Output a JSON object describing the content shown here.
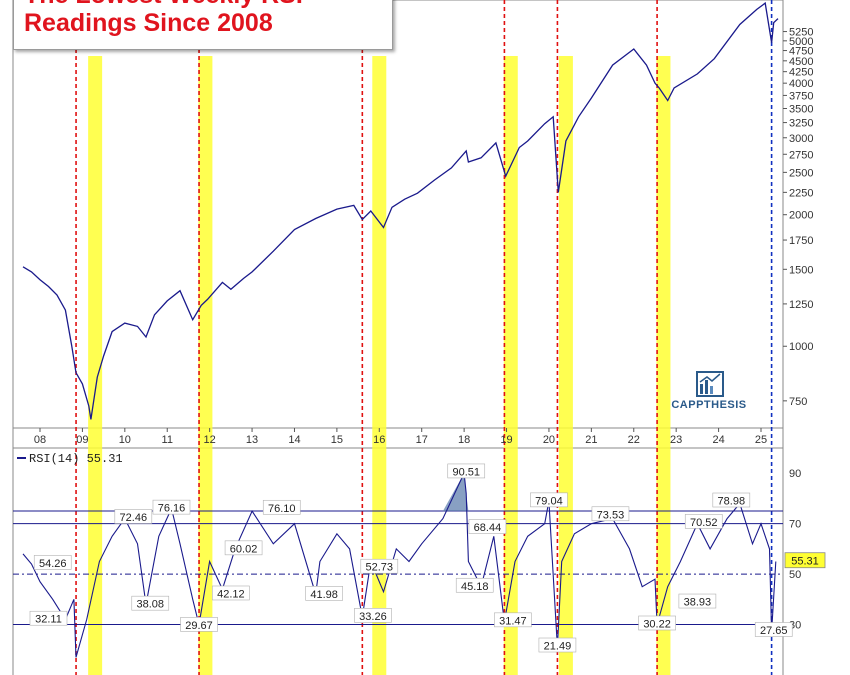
{
  "title": {
    "line1": "The Lowest Weekly RSI",
    "line2": "Readings Since 2008"
  },
  "logo": {
    "text": "CAPPTHESIS"
  },
  "chart_data": [
    {
      "type": "line",
      "series": [
        {
          "x": [
            2007.6,
            2007.8,
            2008.0,
            2008.2,
            2008.4,
            2008.6,
            2008.75,
            2008.85,
            2009.0,
            2009.15,
            2009.2,
            2009.35,
            2009.5,
            2009.7,
            2010.0,
            2010.3,
            2010.5,
            2010.7,
            2011.0,
            2011.3,
            2011.6,
            2011.8,
            2011.95,
            2012.3,
            2012.5,
            2012.8,
            2013.0,
            2013.5,
            2014.0,
            2014.5,
            2015.0,
            2015.4,
            2015.6,
            2015.8,
            2016.1,
            2016.3,
            2016.6,
            2016.9,
            2017.3,
            2017.7,
            2018.05,
            2018.1,
            2018.4,
            2018.75,
            2018.98,
            2019.3,
            2019.5,
            2019.9,
            2020.1,
            2020.22,
            2020.4,
            2020.7,
            2021.0,
            2021.5,
            2022.0,
            2022.3,
            2022.5,
            2022.6,
            2022.8,
            2022.95,
            2023.5,
            2023.9,
            2024.5,
            2024.9,
            2025.1,
            2025.25,
            2025.3,
            2025.4
          ],
          "values": [
            1520,
            1480,
            1420,
            1370,
            1310,
            1210,
            1000,
            870,
            820,
            730,
            680,
            850,
            950,
            1080,
            1130,
            1110,
            1050,
            1180,
            1270,
            1340,
            1150,
            1240,
            1280,
            1400,
            1350,
            1430,
            1480,
            1650,
            1850,
            1960,
            2060,
            2100,
            1950,
            2040,
            1870,
            2080,
            2170,
            2240,
            2400,
            2560,
            2800,
            2640,
            2700,
            2920,
            2450,
            2850,
            2950,
            3230,
            3350,
            2250,
            2950,
            3350,
            3700,
            4400,
            4790,
            4400,
            4000,
            3900,
            3650,
            3900,
            4200,
            4550,
            5450,
            5900,
            6100,
            4950,
            5500,
            5620
          ]
        }
      ],
      "yticks": [
        750,
        1000,
        1250,
        1500,
        1750,
        2000,
        2250,
        2500,
        2750,
        3000,
        3250,
        3500,
        3750,
        4000,
        4250,
        4500,
        4750,
        5000,
        5250
      ],
      "ylim": [
        650,
        6200
      ],
      "xticks": [
        "08",
        "09",
        "10",
        "11",
        "12",
        "13",
        "14",
        "15",
        "16",
        "17",
        "18",
        "19",
        "20",
        "21",
        "22",
        "23",
        "24",
        "25"
      ],
      "scale": "log",
      "grid": false,
      "highlights": [
        2009.3,
        2011.9,
        2016.0,
        2019.1,
        2020.4,
        2022.7
      ],
      "markers_red": [
        2008.85,
        2011.75,
        2015.6,
        2018.95,
        2020.2,
        2022.55
      ],
      "marker_blue": 2025.25
    },
    {
      "type": "line",
      "legend": "RSI(14) 55.31",
      "current_value": "55.31",
      "ylim": [
        10,
        100
      ],
      "yticks": [
        30,
        50,
        70,
        90
      ],
      "reference_lines": [
        30,
        70,
        75
      ],
      "series": [
        {
          "x": [
            2007.6,
            2007.8,
            2008.0,
            2008.3,
            2008.6,
            2008.8,
            2008.85,
            2009.1,
            2009.4,
            2009.7,
            2010.0,
            2010.3,
            2010.5,
            2010.8,
            2011.1,
            2011.3,
            2011.6,
            2011.75,
            2012.0,
            2012.3,
            2012.6,
            2013.0,
            2013.5,
            2014.0,
            2014.5,
            2014.6,
            2015.0,
            2015.3,
            2015.6,
            2015.8,
            2016.1,
            2016.4,
            2016.7,
            2017.0,
            2017.5,
            2018.0,
            2018.05,
            2018.1,
            2018.4,
            2018.7,
            2018.95,
            2019.2,
            2019.5,
            2019.9,
            2020.0,
            2020.2,
            2020.3,
            2020.6,
            2021.0,
            2021.5,
            2021.9,
            2022.2,
            2022.5,
            2022.55,
            2022.8,
            2023.1,
            2023.5,
            2023.8,
            2024.2,
            2024.5,
            2024.8,
            2025.0,
            2025.2,
            2025.25,
            2025.35
          ],
          "values": [
            58,
            54,
            47,
            40,
            32,
            40,
            17,
            32,
            55,
            65,
            72,
            62,
            38,
            65,
            76,
            62,
            40,
            30,
            55,
            44,
            60,
            75,
            62,
            70,
            42,
            55,
            66,
            60,
            33,
            55,
            43,
            60,
            55,
            62,
            72,
            90,
            82,
            55,
            45,
            65,
            31,
            55,
            65,
            70,
            79,
            21,
            55,
            66,
            70,
            72,
            60,
            45,
            48,
            30,
            45,
            55,
            70,
            60,
            72,
            78,
            62,
            70,
            60,
            27,
            55
          ]
        }
      ],
      "labels": [
        {
          "text": "54.26",
          "x": 2008.3,
          "y": 54.26
        },
        {
          "text": "32.11",
          "x": 2008.2,
          "y": 32.11
        },
        {
          "text": "72.46",
          "x": 2010.2,
          "y": 72.46
        },
        {
          "text": "76.16",
          "x": 2011.1,
          "y": 76.16
        },
        {
          "text": "38.08",
          "x": 2010.6,
          "y": 38.08
        },
        {
          "text": "29.67",
          "x": 2011.75,
          "y": 29.67
        },
        {
          "text": "60.02",
          "x": 2012.8,
          "y": 60.02
        },
        {
          "text": "76.10",
          "x": 2013.7,
          "y": 76.1
        },
        {
          "text": "42.12",
          "x": 2012.5,
          "y": 42.12
        },
        {
          "text": "41.98",
          "x": 2014.7,
          "y": 41.98
        },
        {
          "text": "52.73",
          "x": 2016.0,
          "y": 52.73
        },
        {
          "text": "33.26",
          "x": 2015.85,
          "y": 33.26
        },
        {
          "text": "90.51",
          "x": 2018.05,
          "y": 90.51
        },
        {
          "text": "68.44",
          "x": 2018.55,
          "y": 68.44
        },
        {
          "text": "45.18",
          "x": 2018.25,
          "y": 45.18
        },
        {
          "text": "31.47",
          "x": 2019.15,
          "y": 31.47
        },
        {
          "text": "79.04",
          "x": 2020.0,
          "y": 79.04
        },
        {
          "text": "21.49",
          "x": 2020.2,
          "y": 21.49
        },
        {
          "text": "73.53",
          "x": 2021.45,
          "y": 73.53
        },
        {
          "text": "30.22",
          "x": 2022.55,
          "y": 30.22
        },
        {
          "text": "70.52",
          "x": 2023.65,
          "y": 70.52
        },
        {
          "text": "78.98",
          "x": 2024.3,
          "y": 78.98
        },
        {
          "text": "38.93",
          "x": 2023.5,
          "y": 38.93
        },
        {
          "text": "27.65",
          "x": 2025.3,
          "y": 27.65
        }
      ]
    }
  ]
}
